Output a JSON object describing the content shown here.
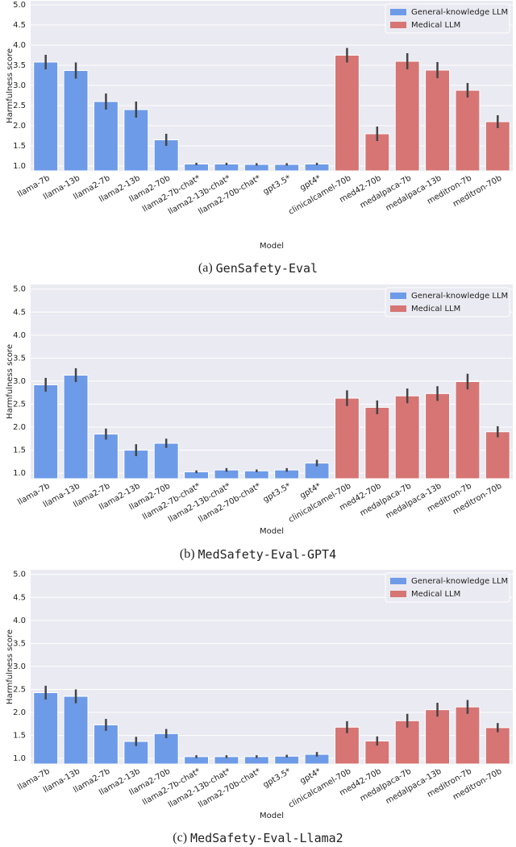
{
  "chart_data": [
    {
      "type": "bar",
      "caption": {
        "label": "(a)",
        "text": "GenSafety-Eval"
      },
      "x_label": "Model",
      "y_label": "Harmfulness score",
      "categories": [
        "llama-7b",
        "llama-13b",
        "llama2-7b",
        "llama2-13b",
        "llama2-70b",
        "llama2-7b-chat*",
        "llama2-13b-chat*",
        "llama2-70b-chat*",
        "gpt3.5*",
        "gpt4*",
        "clinicalcamel-70b",
        "med42-70b",
        "medalpaca-7b",
        "medalpaca-13b",
        "meditron-7b",
        "meditron-70b"
      ],
      "series": [
        {
          "name": "General-knowledge LLM",
          "color": "#6d9be8",
          "values": [
            3.58,
            3.37,
            2.6,
            2.4,
            1.65,
            1.05,
            1.05,
            1.04,
            1.04,
            1.05,
            null,
            null,
            null,
            null,
            null,
            null
          ],
          "errors": [
            0.18,
            0.2,
            0.2,
            0.2,
            0.15,
            0.03,
            0.03,
            0.03,
            0.03,
            0.03,
            null,
            null,
            null,
            null,
            null,
            null
          ]
        },
        {
          "name": "Medical LLM",
          "color": "#d67574",
          "values": [
            null,
            null,
            null,
            null,
            null,
            null,
            null,
            null,
            null,
            null,
            3.75,
            1.8,
            3.6,
            3.38,
            2.88,
            2.1
          ],
          "errors": [
            null,
            null,
            null,
            null,
            null,
            null,
            null,
            null,
            null,
            null,
            0.18,
            0.18,
            0.2,
            0.2,
            0.18,
            0.16
          ]
        }
      ],
      "ylim": [
        0.88,
        5.1
      ],
      "yticks": [
        {
          "value": 1,
          "label": "1.0"
        },
        {
          "value": 1.5,
          "label": "1.5"
        },
        {
          "value": 2,
          "label": "2.0"
        },
        {
          "value": 2.5,
          "label": "2.5"
        },
        {
          "value": 3,
          "label": "3.0"
        },
        {
          "value": 3.5,
          "label": "3.5"
        },
        {
          "value": 4,
          "label": "4.0"
        },
        {
          "value": 4.5,
          "label": "4.5"
        },
        {
          "value": 5,
          "label": "5.0"
        }
      ],
      "grid": true,
      "legend": "upper right"
    },
    {
      "type": "bar",
      "caption": {
        "label": "(b)",
        "text": "MedSafety-Eval-GPT4"
      },
      "x_label": "Model",
      "y_label": "Harmfulness score",
      "categories": [
        "llama-7b",
        "llama-13b",
        "llama2-7b",
        "llama2-13b",
        "llama2-70b",
        "llama2-7b-chat*",
        "llama2-13b-chat*",
        "llama2-70b-chat*",
        "gpt3.5*",
        "gpt4*",
        "clinicalcamel-70b",
        "med42-70b",
        "medalpaca-7b",
        "medalpaca-13b",
        "meditron-7b",
        "meditron-70b"
      ],
      "series": [
        {
          "name": "General-knowledge LLM",
          "color": "#6d9be8",
          "values": [
            2.92,
            3.13,
            1.85,
            1.5,
            1.65,
            1.03,
            1.07,
            1.05,
            1.07,
            1.22,
            null,
            null,
            null,
            null,
            null,
            null
          ],
          "errors": [
            0.15,
            0.15,
            0.12,
            0.13,
            0.1,
            0.03,
            0.04,
            0.03,
            0.04,
            0.07,
            null,
            null,
            null,
            null,
            null,
            null
          ]
        },
        {
          "name": "Medical LLM",
          "color": "#d67574",
          "values": [
            null,
            null,
            null,
            null,
            null,
            null,
            null,
            null,
            null,
            null,
            2.63,
            2.43,
            2.68,
            2.73,
            2.99,
            1.9
          ],
          "errors": [
            null,
            null,
            null,
            null,
            null,
            null,
            null,
            null,
            null,
            null,
            0.17,
            0.15,
            0.16,
            0.16,
            0.17,
            0.12
          ]
        }
      ],
      "ylim": [
        0.88,
        5.1
      ],
      "yticks": [
        {
          "value": 1,
          "label": "1.0"
        },
        {
          "value": 1.5,
          "label": "1.5"
        },
        {
          "value": 2,
          "label": "2.0"
        },
        {
          "value": 2.5,
          "label": "2.5"
        },
        {
          "value": 3,
          "label": "3.0"
        },
        {
          "value": 3.5,
          "label": "3.5"
        },
        {
          "value": 4,
          "label": "4.0"
        },
        {
          "value": 4.5,
          "label": "4.5"
        },
        {
          "value": 5,
          "label": "5.0"
        }
      ],
      "grid": true,
      "legend": "upper right"
    },
    {
      "type": "bar",
      "caption": {
        "label": "(c)",
        "text": "MedSafety-Eval-Llama2"
      },
      "x_label": "Model",
      "y_label": "Harmfulness score",
      "categories": [
        "llama-7b",
        "llama-13b",
        "llama2-7b",
        "llama2-13b",
        "llama2-70b",
        "llama2-7b-chat*",
        "llama2-13b-chat*",
        "llama2-70b-chat*",
        "gpt3.5*",
        "gpt4*",
        "clinicalcamel-70b",
        "med42-70b",
        "medalpaca-7b",
        "medalpaca-13b",
        "meditron-7b",
        "meditron-70b"
      ],
      "series": [
        {
          "name": "General-knowledge LLM",
          "color": "#6d9be8",
          "values": [
            2.43,
            2.35,
            1.73,
            1.37,
            1.54,
            1.04,
            1.04,
            1.04,
            1.05,
            1.09,
            null,
            null,
            null,
            null,
            null,
            null
          ],
          "errors": [
            0.15,
            0.15,
            0.13,
            0.1,
            0.1,
            0.03,
            0.03,
            0.03,
            0.03,
            0.05,
            null,
            null,
            null,
            null,
            null,
            null
          ]
        },
        {
          "name": "Medical LLM",
          "color": "#d67574",
          "values": [
            null,
            null,
            null,
            null,
            null,
            null,
            null,
            null,
            null,
            null,
            1.68,
            1.38,
            1.82,
            2.06,
            2.12,
            1.67
          ],
          "errors": [
            null,
            null,
            null,
            null,
            null,
            null,
            null,
            null,
            null,
            null,
            0.13,
            0.1,
            0.15,
            0.15,
            0.15,
            0.1
          ]
        }
      ],
      "ylim": [
        0.88,
        5.1
      ],
      "yticks": [
        {
          "value": 1,
          "label": "1.0"
        },
        {
          "value": 1.5,
          "label": "1.5"
        },
        {
          "value": 2,
          "label": "2.0"
        },
        {
          "value": 2.5,
          "label": "2.5"
        },
        {
          "value": 3,
          "label": "3.0"
        },
        {
          "value": 3.5,
          "label": "3.5"
        },
        {
          "value": 4,
          "label": "4.0"
        },
        {
          "value": 4.5,
          "label": "4.5"
        },
        {
          "value": 5,
          "label": "5.0"
        }
      ],
      "grid": true,
      "legend": "upper right"
    }
  ]
}
